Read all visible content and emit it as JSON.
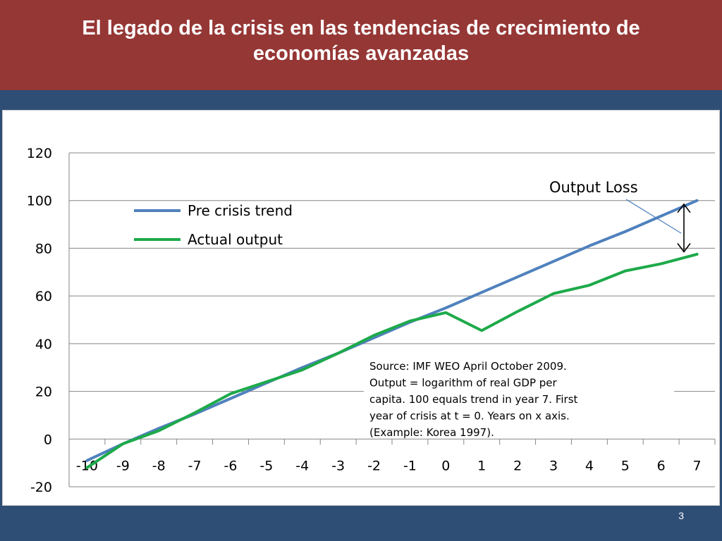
{
  "slide": {
    "title": "El legado de la crisis en las tendencias de crecimiento  de economías avanzadas",
    "page_number": "3"
  },
  "colors": {
    "title_bar": "#953735",
    "background": "#2f4e75",
    "trend_line": "#4f81bd",
    "actual_line": "#1daa4a"
  },
  "chart_data": {
    "type": "line",
    "title": "",
    "xlabel": "",
    "ylabel": "",
    "categories": [
      -10,
      -9,
      -8,
      -7,
      -6,
      -5,
      -4,
      -3,
      -2,
      -1,
      0,
      1,
      2,
      3,
      4,
      5,
      6,
      7
    ],
    "ylim": [
      -20,
      120
    ],
    "yticks": [
      120,
      100,
      80,
      60,
      40,
      20,
      0,
      -20
    ],
    "grid": true,
    "legend_position": "upper-left",
    "series": [
      {
        "name": "Pre crisis trend",
        "color": "#4f81bd",
        "values": [
          -9,
          -2,
          4.5,
          10.5,
          17,
          23.5,
          30,
          36,
          42.5,
          49,
          55,
          61.5,
          68,
          74.5,
          81,
          87,
          93.5,
          100
        ]
      },
      {
        "name": "Actual output",
        "color": "#1daa4a",
        "values": [
          -12,
          -2,
          3.5,
          11,
          19,
          24,
          29,
          36,
          43.5,
          49.5,
          53,
          45.5,
          53.5,
          61,
          64.5,
          70.5,
          73.5,
          77.5
        ]
      }
    ],
    "annotations": {
      "output_loss_label": "Output Loss",
      "source_note": [
        "Source: IMF WEO April October  2009.",
        "Output = logarithm  of real GDP per",
        "capita. 100 equals trend in year 7.  First",
        "year of crisis at t = 0. Years on x axis.",
        "(Example:  Korea 1997)."
      ]
    }
  }
}
